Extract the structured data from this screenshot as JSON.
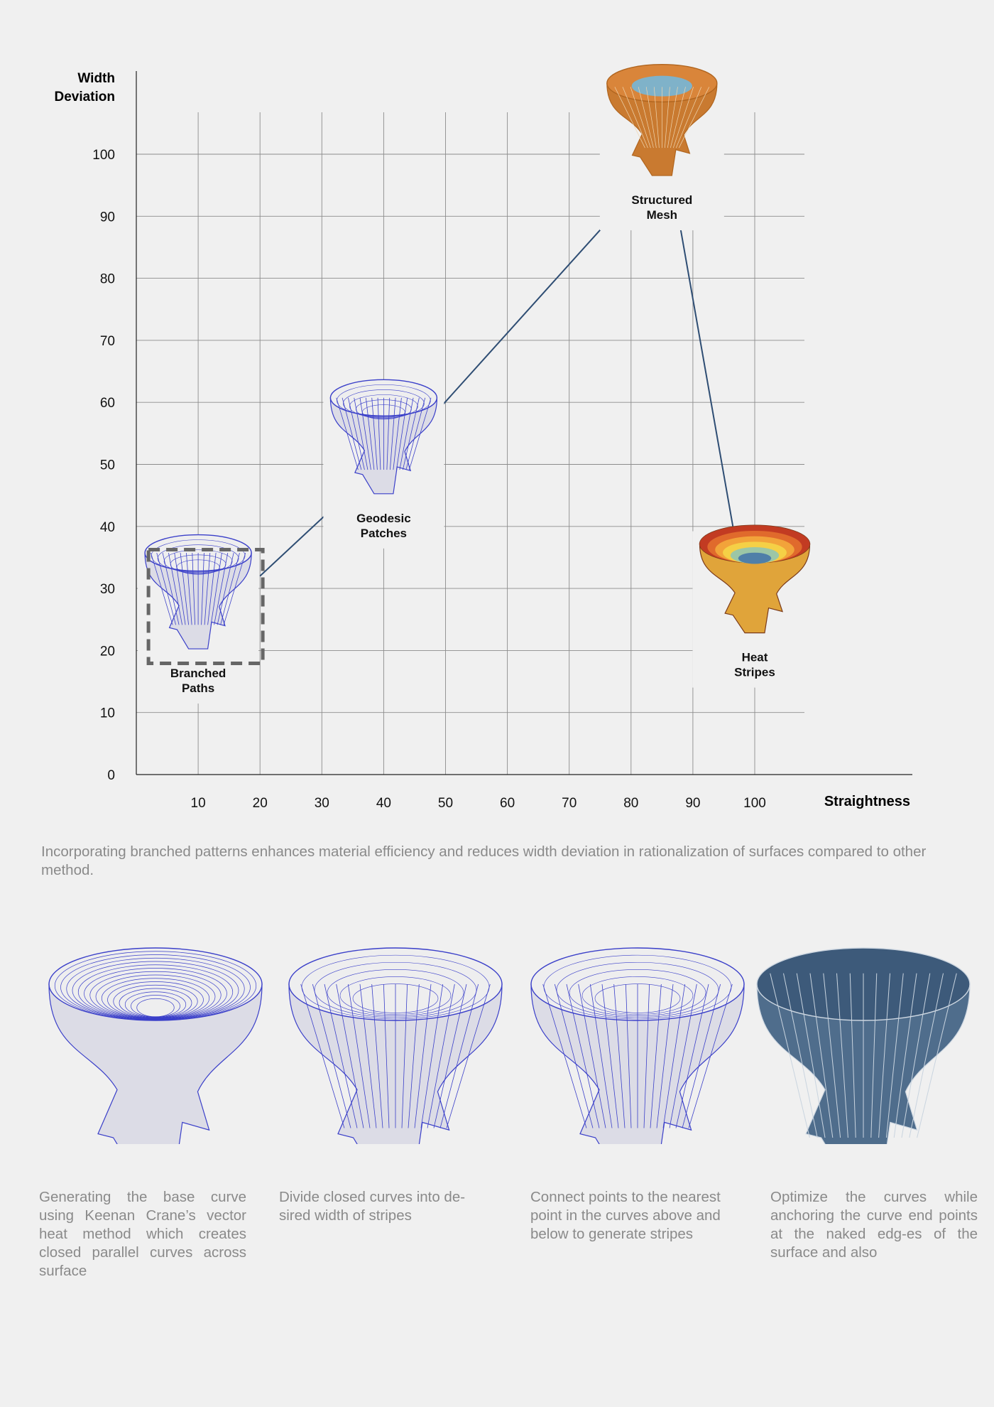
{
  "chart_data": {
    "type": "scatter",
    "xlabel": "Straightness",
    "ylabel": "Width Deviation",
    "xlim": [
      0,
      125
    ],
    "ylim": [
      0,
      110
    ],
    "xticks": [
      10,
      20,
      30,
      40,
      50,
      60,
      70,
      80,
      90,
      100
    ],
    "yticks": [
      0,
      10,
      20,
      30,
      40,
      50,
      60,
      70,
      80,
      90,
      100
    ],
    "grid": true,
    "points": [
      {
        "label_line1": "Branched",
        "label_line2": "Paths",
        "x": 10,
        "y": 28,
        "style": "blue-wire",
        "highlighted": true
      },
      {
        "label_line1": "Geodesic",
        "label_line2": "Patches",
        "x": 40,
        "y": 53,
        "style": "blue-wire",
        "highlighted": false
      },
      {
        "label_line1": "Structured",
        "label_line2": "Mesh",
        "x": 85,
        "y": 104,
        "style": "orange",
        "highlighted": false
      },
      {
        "label_line1": "Heat",
        "label_line2": "Stripes",
        "x": 100,
        "y": 30,
        "style": "heat",
        "highlighted": false
      }
    ],
    "connections": [
      {
        "from": [
          20,
          32
        ],
        "to": [
          34,
          45
        ]
      },
      {
        "from": [
          49,
          59
        ],
        "to": [
          77,
          90
        ]
      },
      {
        "from": [
          88,
          88
        ],
        "to": [
          97,
          37
        ]
      }
    ]
  },
  "caption": "Incorporating branched patterns enhances material efficiency and reduces width deviation in rationalization of surfaces compared to other method.",
  "steps": [
    {
      "text": "Generating the base curve using Keenan Crane’s vector heat method which creates closed parallel curves across surface",
      "style": "contours"
    },
    {
      "text": "Divide closed curves into de-sired width of stripes",
      "style": "branched"
    },
    {
      "text": "Connect points to the nearest point in the curves above and below to generate stripes",
      "style": "connected"
    },
    {
      "text": "Optimize the curves while anchoring the curve end points at the naked edg-es of the surface and also",
      "style": "optimized"
    }
  ],
  "colors": {
    "connector": "#2e4d73",
    "wire": "#3a3fc9",
    "grid": "#8c8c8c",
    "highlight_box": "#666666"
  }
}
